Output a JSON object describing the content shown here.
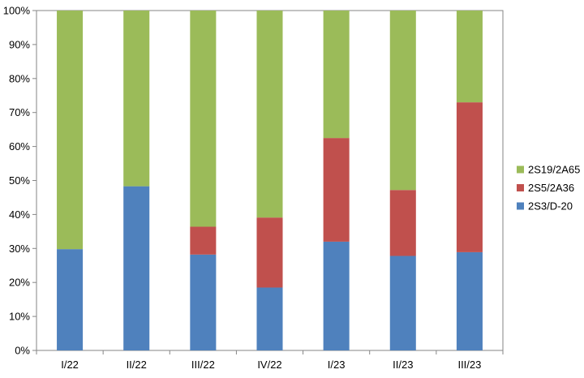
{
  "chart_data": {
    "type": "bar",
    "stacked": true,
    "normalized": true,
    "categories": [
      "I/22",
      "II/22",
      "III/22",
      "IV/22",
      "I/23",
      "II/23",
      "III/23"
    ],
    "series": [
      {
        "name": "2S3/D-20",
        "color": "#4F81BD",
        "values": [
          29.8,
          48.3,
          28.2,
          18.5,
          32.0,
          27.8,
          28.9
        ]
      },
      {
        "name": "2S5/2A36",
        "color": "#C0504D",
        "values": [
          0.0,
          0.0,
          8.2,
          20.6,
          30.5,
          19.4,
          44.1
        ]
      },
      {
        "name": "2S19/2A65",
        "color": "#9BBB59",
        "values": [
          70.2,
          51.7,
          63.6,
          60.9,
          37.5,
          52.8,
          27.0
        ]
      }
    ],
    "y_ticks": [
      "0%",
      "10%",
      "20%",
      "30%",
      "40%",
      "50%",
      "60%",
      "70%",
      "80%",
      "90%",
      "100%"
    ],
    "ylim": [
      0,
      100
    ],
    "grid": false,
    "legend_position": "right",
    "legend_order": [
      "2S19/2A65",
      "2S5/2A36",
      "2S3/D-20"
    ]
  }
}
